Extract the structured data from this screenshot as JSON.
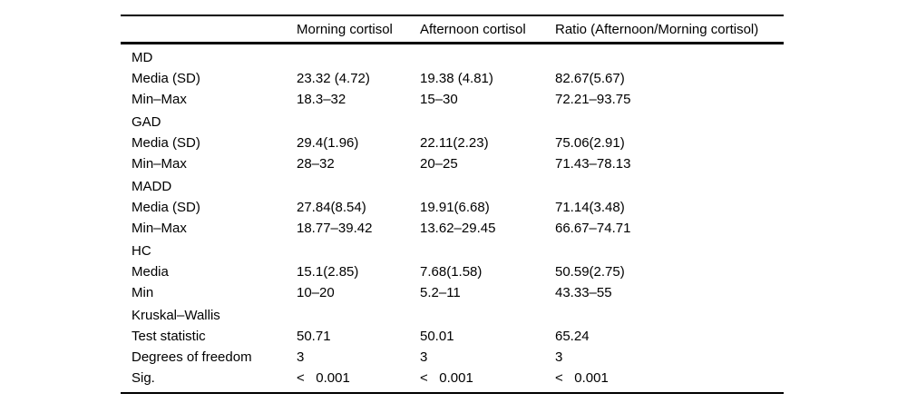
{
  "table": {
    "columns": [
      "",
      "Morning cortisol",
      "Afternoon cortisol",
      "Ratio (Afternoon/Morning cortisol)"
    ],
    "groups": [
      {
        "label": "MD",
        "rows": [
          {
            "label": "Media (SD)",
            "values": [
              "23.32 (4.72)",
              "19.38 (4.81)",
              "82.67(5.67)"
            ]
          },
          {
            "label": "Min–Max",
            "values": [
              "18.3–32",
              "15–30",
              "72.21–93.75"
            ]
          }
        ]
      },
      {
        "label": "GAD",
        "rows": [
          {
            "label": "Media (SD)",
            "values": [
              "29.4(1.96)",
              "22.11(2.23)",
              "75.06(2.91)"
            ]
          },
          {
            "label": "Min–Max",
            "values": [
              "28–32",
              "20–25",
              "71.43–78.13"
            ]
          }
        ]
      },
      {
        "label": "MADD",
        "rows": [
          {
            "label": "Media (SD)",
            "values": [
              "27.84(8.54)",
              "19.91(6.68)",
              "71.14(3.48)"
            ]
          },
          {
            "label": "Min–Max",
            "values": [
              "18.77–39.42",
              "13.62–29.45",
              "66.67–74.71"
            ]
          }
        ]
      },
      {
        "label": "HC",
        "rows": [
          {
            "label": "Media",
            "values": [
              "15.1(2.85)",
              "7.68(1.58)",
              "50.59(2.75)"
            ]
          },
          {
            "label": "Min",
            "values": [
              "10–20",
              "5.2–11",
              "43.33–55"
            ]
          }
        ]
      },
      {
        "label": "Kruskal–Wallis",
        "rows": [
          {
            "label": "Test statistic",
            "values": [
              "50.71",
              "50.01",
              "65.24"
            ]
          },
          {
            "label": "Degrees of freedom",
            "values": [
              "3",
              "3",
              "3"
            ]
          },
          {
            "label": "Sig.",
            "values": [
              "<   0.001",
              "<   0.001",
              "<   0.001"
            ]
          }
        ]
      }
    ],
    "colors": {
      "text": "#000000",
      "rule": "#000000",
      "background": "#ffffff"
    }
  }
}
